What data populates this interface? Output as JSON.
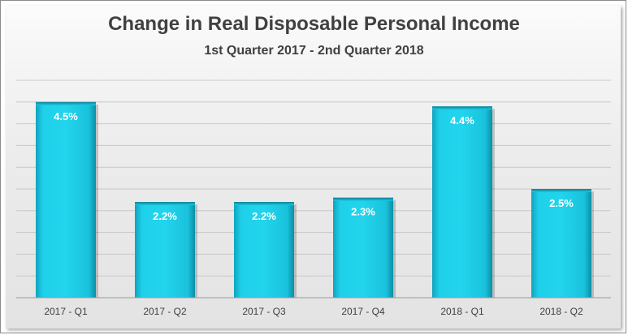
{
  "chart_data": {
    "type": "bar",
    "title": "Change in Real Disposable Personal Income",
    "subtitle": "1st Quarter 2017 - 2nd Quarter 2018",
    "xlabel": "",
    "ylabel": "",
    "categories": [
      "2017 - Q1",
      "2017 - Q2",
      "2017 - Q3",
      "2017 - Q4",
      "2018 - Q1",
      "2018 - Q2"
    ],
    "values": [
      4.5,
      2.2,
      2.2,
      2.3,
      4.4,
      2.5
    ],
    "data_labels": [
      "4.5%",
      "2.2%",
      "2.2%",
      "2.3%",
      "4.4%",
      "2.5%"
    ],
    "ylim": [
      0,
      5.0
    ],
    "gridlines": true,
    "legend": "none",
    "bar_color": "#1cc6e0",
    "bar_dark_color": "#0e8fa6",
    "label_color": "#ffffff"
  }
}
